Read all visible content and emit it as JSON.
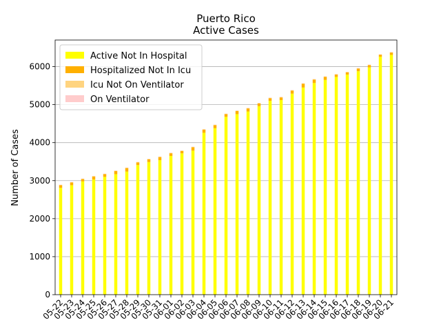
{
  "chart_data": {
    "type": "bar",
    "stacked": true,
    "title": "Puerto Rico",
    "subtitle": "Active Cases",
    "xlabel": "",
    "ylabel": "Number of Cases",
    "ylim": [
      0,
      6700
    ],
    "yticks": [
      0,
      1000,
      2000,
      3000,
      4000,
      5000,
      6000
    ],
    "grid": "y",
    "legend_position": "top-left",
    "categories": [
      "05-22",
      "05-23",
      "05-24",
      "05-25",
      "05-26",
      "05-27",
      "05-28",
      "05-29",
      "05-30",
      "05-31",
      "06-01",
      "06-02",
      "06-03",
      "06-04",
      "06-05",
      "06-06",
      "06-07",
      "06-08",
      "06-09",
      "06-10",
      "06-11",
      "06-12",
      "06-13",
      "06-14",
      "06-15",
      "06-16",
      "06-17",
      "06-18",
      "06-19",
      "06-20",
      "06-21"
    ],
    "series": [
      {
        "name": "Active Not In Hospital",
        "color": "#ffff00",
        "values": [
          2810,
          2880,
          2980,
          3030,
          3100,
          3170,
          3240,
          3410,
          3490,
          3540,
          3650,
          3720,
          3790,
          4260,
          4380,
          4680,
          4750,
          4820,
          4960,
          5100,
          5120,
          5290,
          5450,
          5570,
          5650,
          5730,
          5790,
          5880,
          5980,
          6260,
          6310
        ]
      },
      {
        "name": "Hospitalized Not In Icu",
        "color": "#ffb000",
        "values": [
          70,
          70,
          60,
          80,
          70,
          80,
          90,
          70,
          70,
          80,
          70,
          60,
          90,
          80,
          80,
          70,
          80,
          80,
          70,
          70,
          70,
          80,
          100,
          90,
          80,
          60,
          60,
          70,
          60,
          50,
          60
        ]
      },
      {
        "name": "Icu Not On Ventilator",
        "color": "#ffd480",
        "values": [
          10,
          10,
          10,
          10,
          10,
          10,
          10,
          10,
          10,
          10,
          10,
          10,
          10,
          10,
          10,
          10,
          10,
          10,
          10,
          10,
          10,
          10,
          10,
          10,
          10,
          10,
          10,
          10,
          10,
          10,
          10
        ]
      },
      {
        "name": "On Ventilator",
        "color": "#ffcccc",
        "values": [
          5,
          5,
          5,
          5,
          5,
          5,
          5,
          5,
          5,
          5,
          5,
          5,
          5,
          5,
          5,
          5,
          5,
          5,
          5,
          5,
          5,
          5,
          5,
          5,
          5,
          5,
          5,
          5,
          5,
          5,
          5
        ]
      }
    ]
  }
}
